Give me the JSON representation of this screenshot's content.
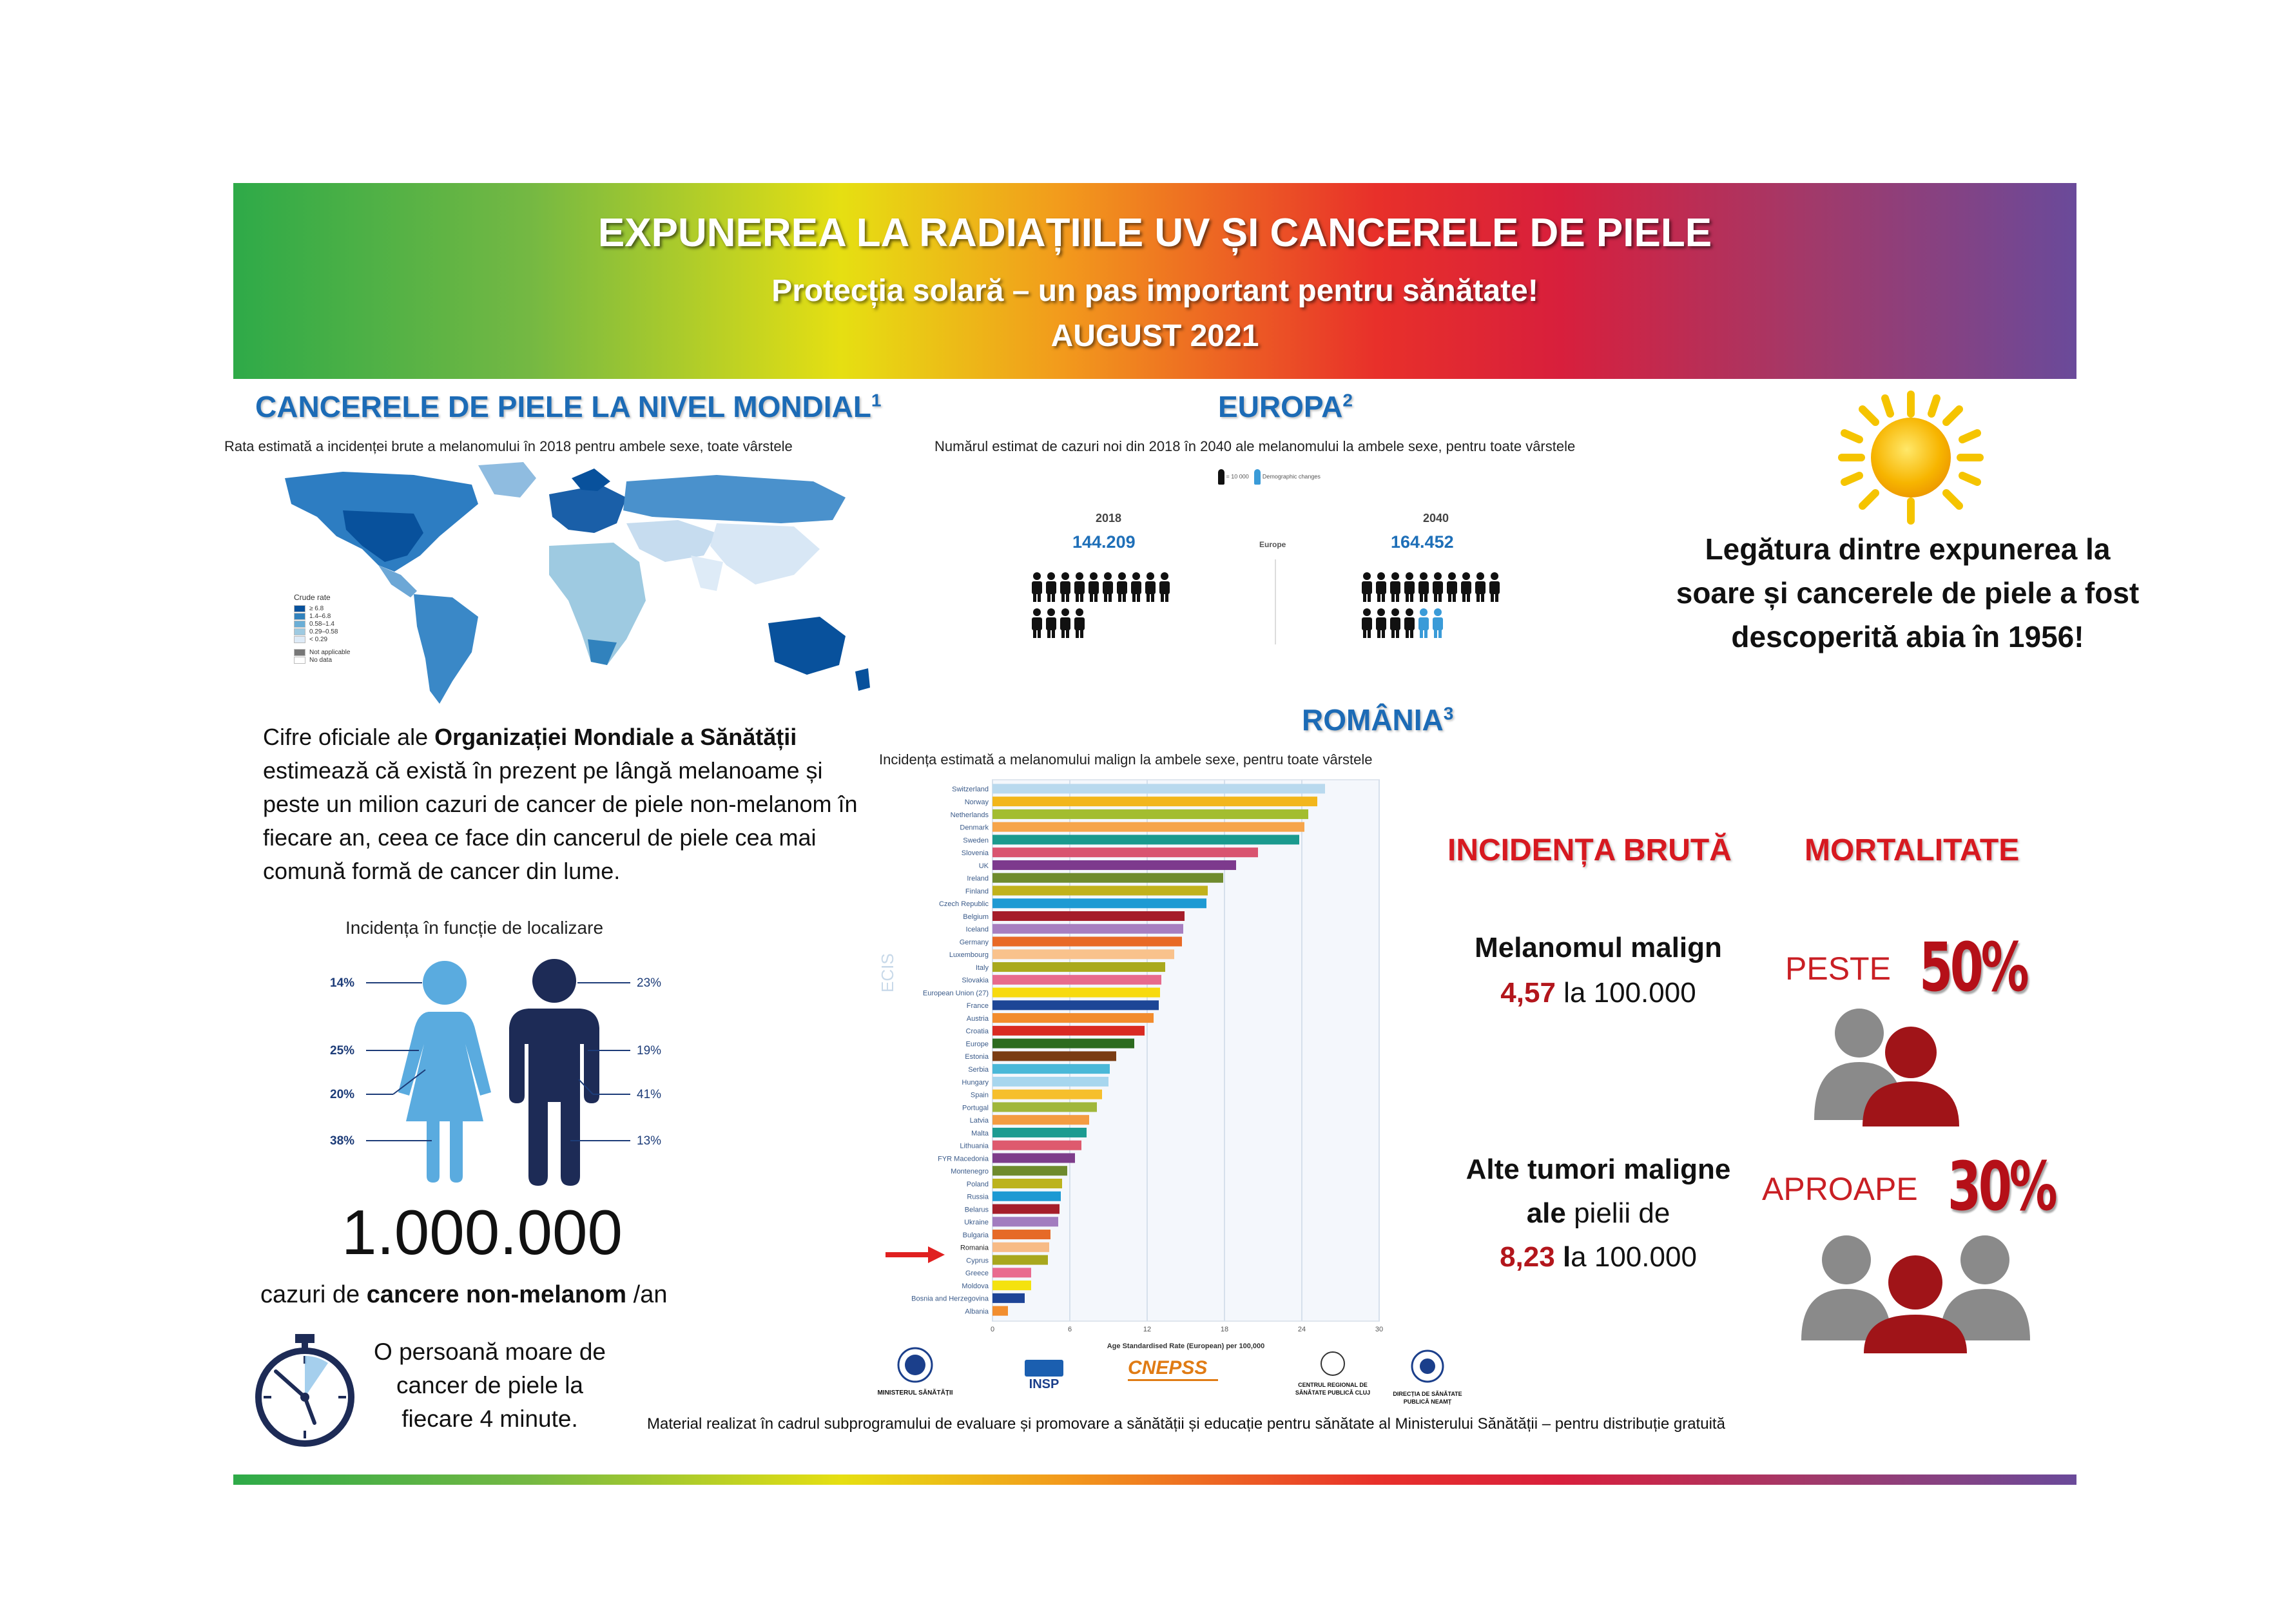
{
  "header": {
    "title": "EXPUNEREA LA RADIAȚIILE UV ȘI CANCERELE DE PIELE",
    "subtitle": "Protecția solară – un pas important pentru sănătate!",
    "date": "AUGUST 2021"
  },
  "world": {
    "title": "CANCERELE DE PIELE LA NIVEL MONDIAL",
    "ref": "1",
    "caption": "Rata estimată a incidenței brute a melanomului în 2018 pentru ambele sexe, toate vârstele",
    "legend_title": "Crude rate",
    "legend": [
      {
        "label": "≥ 6.8",
        "color": "#08519c"
      },
      {
        "label": "1.4–6.8",
        "color": "#3182bd"
      },
      {
        "label": "0.58–1.4",
        "color": "#6baed6"
      },
      {
        "label": "0.29–0.58",
        "color": "#9ecae1"
      },
      {
        "label": "< 0.29",
        "color": "#deebf7"
      },
      {
        "label": "Not applicable",
        "color": "#777777"
      },
      {
        "label": "No data",
        "color": "#ffffff"
      }
    ]
  },
  "europe": {
    "title": "EUROPA",
    "ref": "2",
    "caption": "Numărul estimat de cazuri noi din 2018  în 2040 ale melanomului la ambele sexe, pentru toate vârstele",
    "legend_unit": "= 10 000",
    "legend_changes": "Demographic changes",
    "center_label": "Europe",
    "year_a": "2018",
    "value_a": "144.209",
    "year_b": "2040",
    "value_b": "164.452",
    "colors": {
      "base": "#111111",
      "change": "#3a9bd8"
    }
  },
  "who_text": {
    "pre": "Cifre oficiale ale ",
    "bold": "Organizației Mondiale a Sănătății",
    "post": " estimează că există în prezent pe lângă melanoame și peste un milion cazuri de cancer de piele non-melanom în fiecare an, ceea ce face din cancerul de piele cea mai comună formă de cancer din lume."
  },
  "localization": {
    "title": "Incidența în funcție de localizare",
    "female": [
      "14%",
      "25%",
      "20%",
      "38%"
    ],
    "male": [
      "23%",
      "19%",
      "41%",
      "13%"
    ],
    "colors": {
      "female": "#5aabdf",
      "male": "#1d2b56",
      "label": "#1d3c78"
    }
  },
  "nonmelanoma": {
    "number": "1.000.000",
    "pre": "cazuri de ",
    "bold": "cancere non-melanom",
    "post": " /an"
  },
  "death_text": "O persoană moare de cancer de piele la fiecare 4 minute.",
  "romania": {
    "title": "ROMÂNIA",
    "ref": "3",
    "caption": "Incidența estimată a melanomului malign  la ambele sexe, pentru toate vârstele"
  },
  "chart_data": {
    "type": "bar",
    "orientation": "horizontal",
    "xlabel": "Age Standardised Rate (European) per 100,000",
    "xlim": [
      0,
      30
    ],
    "xticks": [
      0,
      6,
      12,
      18,
      24,
      30
    ],
    "watermark": "ECIS",
    "highlight": "Romania",
    "categories": [
      "Switzerland",
      "Norway",
      "Netherlands",
      "Denmark",
      "Sweden",
      "Slovenia",
      "UK",
      "Ireland",
      "Finland",
      "Czech Republic",
      "Belgium",
      "Iceland",
      "Germany",
      "Luxembourg",
      "Italy",
      "Slovakia",
      "European Union (27)",
      "France",
      "Austria",
      "Croatia",
      "Europe",
      "Estonia",
      "Serbia",
      "Hungary",
      "Spain",
      "Portugal",
      "Latvia",
      "Malta",
      "Lithuania",
      "FYR Macedonia",
      "Montenegro",
      "Poland",
      "Russia",
      "Belarus",
      "Ukraine",
      "Bulgaria",
      "Romania",
      "Cyprus",
      "Greece",
      "Moldova",
      "Bosnia and Herzegovina",
      "Albania"
    ],
    "values": [
      25.8,
      25.2,
      24.5,
      24.2,
      23.8,
      20.6,
      18.9,
      17.9,
      16.7,
      16.6,
      14.9,
      14.8,
      14.7,
      14.1,
      13.4,
      13.1,
      13.0,
      12.9,
      12.5,
      11.8,
      11.0,
      9.6,
      9.1,
      9.0,
      8.5,
      8.1,
      7.5,
      7.3,
      6.9,
      6.4,
      5.8,
      5.4,
      5.3,
      5.2,
      5.1,
      4.5,
      4.4,
      4.3,
      3.0,
      3.0,
      2.5,
      1.2
    ],
    "colors": [
      "#b9d9ee",
      "#f2b61b",
      "#a3bd2f",
      "#f6a54b",
      "#1a9a8e",
      "#d95470",
      "#7d3a8d",
      "#6f8b2e",
      "#c1b21c",
      "#1e9ad3",
      "#a51d2a",
      "#a77fc0",
      "#e86a26",
      "#f9c28c",
      "#a9a91d",
      "#e76a8c",
      "#f7da0f",
      "#1d4696",
      "#f28c2d",
      "#d92a22",
      "#2c6b1f",
      "#7a3c13",
      "#4ab8d8",
      "#a7d6ee",
      "#f6bf2c",
      "#a0b73b",
      "#f39c41",
      "#1c9b91",
      "#de5a6e",
      "#7d3d8b",
      "#6e8a2d",
      "#bcb31d",
      "#1d99d3",
      "#a51e2a",
      "#a27cbf",
      "#e66a27",
      "#f7bb86",
      "#a8a71d",
      "#e96b8f",
      "#f4e20f",
      "#1d4497",
      "#f28e2f"
    ]
  },
  "sun_text": "Legătura dintre expunerea la soare și cancerele de piele a fost descoperită abia în 1956!",
  "incidence": {
    "title": "INCIDENȚA BRUTĂ",
    "melanoma_label": "Melanomul malign",
    "melanoma_value": "4,57",
    "melanoma_rest": " la 100.000",
    "other_line1": "Alte tumori maligne",
    "other_bold": "ale",
    "other_rest1": " pielii de",
    "other_value": "8,23",
    "other_rest2_bold": " l",
    "other_rest2": "a 100.000"
  },
  "mortality": {
    "title": "MORTALITATE",
    "word1": "PESTE",
    "pct1": "50%",
    "pct1_value": 50,
    "word2": "APROAPE",
    "pct2": "30%",
    "pct2_value": 30
  },
  "logos": {
    "l1": "MINISTERUL SĂNĂTĂȚII",
    "l2": "INSP",
    "l3": "CNEPSS",
    "l4a": "CENTRUL REGIONAL DE",
    "l4b": "SĂNĂTATE PUBLICĂ CLUJ",
    "l5a": "DIRECȚIA DE SĂNĂTATE",
    "l5b": "PUBLICĂ NEAMȚ"
  },
  "footer": "Material realizat în cadrul subprogramului de evaluare și promovare a sănătății și educație pentru sănătate al Ministerului Sănătății – pentru distribuție gratuită"
}
